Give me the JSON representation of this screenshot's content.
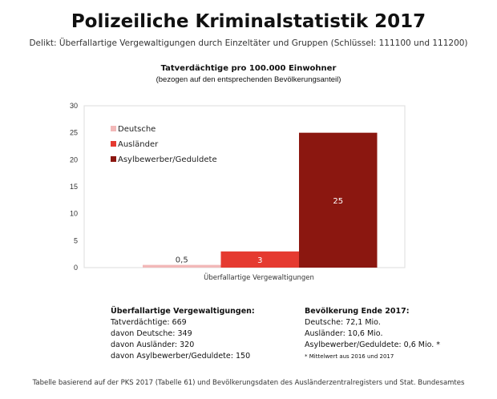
{
  "title": "Polizeiliche Kriminalstatistik 2017",
  "subtitle": "Delikt: Überfallartige Vergewaltigungen durch Einzeltäter und Gruppen (Schlüssel: 111100 und 111200)",
  "chart_data": {
    "type": "bar",
    "title": "Tatverdächtige pro 100.000 Einwohner",
    "subtitle": "(bezogen auf den entsprechenden Bevölkerungsanteil)",
    "categories": [
      "Überfallartige Vergewaltigungen"
    ],
    "series": [
      {
        "name": "Deutsche",
        "values": [
          0.5
        ],
        "label": "0,5",
        "color": "#f2b8b8"
      },
      {
        "name": "Ausländer",
        "values": [
          3
        ],
        "label": "3",
        "color": "#e53a30"
      },
      {
        "name": "Asylbewerber/Geduldete",
        "values": [
          25
        ],
        "label": "25",
        "color": "#8b1710"
      }
    ],
    "yticks": [
      "0",
      "5",
      "10",
      "15",
      "20",
      "25",
      "30"
    ],
    "ylim": [
      0,
      30
    ],
    "legend": "top-left",
    "xlabel": "",
    "ylabel": ""
  },
  "left_block": {
    "heading": "Überfallartige Vergewaltigungen:",
    "lines": [
      "Tatverdächtige: 669",
      "davon Deutsche: 349",
      "davon Ausländer: 320",
      "davon Asylbewerber/Geduldete: 150"
    ]
  },
  "right_block": {
    "heading": "Bevölkerung Ende 2017:",
    "lines": [
      "Deutsche: 72,1 Mio.",
      "Ausländer: 10,6 Mio.",
      "Asylbewerber/Geduldete: 0,6 Mio. *"
    ],
    "note": "* Mittelwert aus 2016 und 2017"
  },
  "footer": "Tabelle basierend auf der PKS 2017 (Tabelle 61) und Bevölkerungsdaten des Ausländerzentralregisters und Stat. Bundesamtes"
}
